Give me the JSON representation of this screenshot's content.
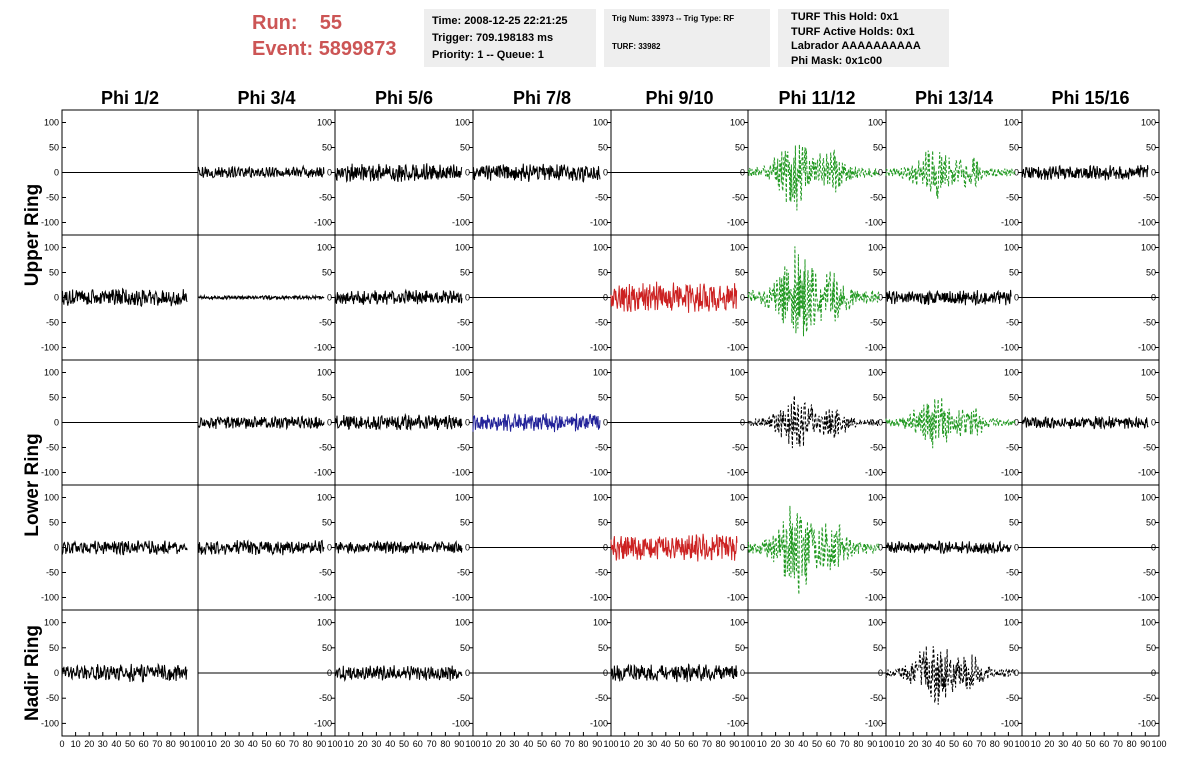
{
  "run_label": "Run:",
  "run_value": "55",
  "event_label": "Event:",
  "event_value": "5899873",
  "time_box": {
    "lines": [
      "Time: 2008-12-25 22:21:25",
      "Trigger: 709.198183 ms",
      "Priority: 1 -- Queue: 1"
    ]
  },
  "trig_box": {
    "line1": "Trig Num: 33973 -- Trig Type: RF",
    "line2": "TURF: 33982"
  },
  "turf_box": {
    "lines": [
      "TURF This Hold: 0x1",
      "TURF Active Holds: 0x1",
      "Labrador AAAAAAAAAA",
      "Phi Mask: 0x1c00"
    ]
  },
  "columns": [
    "Phi 1/2",
    "Phi 3/4",
    "Phi 5/6",
    "Phi 7/8",
    "Phi 9/10",
    "Phi 11/12",
    "Phi 13/14",
    "Phi 15/16"
  ],
  "ring_labels": [
    {
      "text": "Upper Ring",
      "rows": [
        0,
        1
      ]
    },
    {
      "text": "Lower Ring",
      "rows": [
        2,
        3
      ]
    },
    {
      "text": "Nadir Ring",
      "rows": [
        4
      ]
    }
  ],
  "colors": {
    "black": "#000000",
    "red": "#cc2222",
    "blue": "#222299",
    "green": "#229922",
    "info_text": "#cc5555",
    "info_bg": "#eeeeee"
  },
  "chart_data": {
    "type": "line",
    "description_layout": "grid of waveform panels, 5 rows x 8 columns",
    "x": {
      "min": 0,
      "max": 100,
      "ticks": [
        0,
        10,
        20,
        30,
        40,
        50,
        60,
        70,
        80,
        90,
        100
      ]
    },
    "y": {
      "min": -125,
      "max": 125,
      "ticks": [
        -100,
        -50,
        0,
        50,
        100
      ]
    },
    "panels": [
      [
        {
          "amp": 0,
          "color": "black",
          "style": "solid"
        },
        {
          "amp": 10,
          "color": "black",
          "style": "solid"
        },
        {
          "amp": 15,
          "color": "black",
          "style": "solid"
        },
        {
          "amp": 15,
          "color": "black",
          "style": "solid"
        },
        {
          "amp": 0,
          "color": "black",
          "style": "solid"
        },
        {
          "amp": 35,
          "color": "green",
          "style": "dashed",
          "burst": true
        },
        {
          "amp": 25,
          "color": "green",
          "style": "dashed",
          "burst": true
        },
        {
          "amp": 12,
          "color": "black",
          "style": "solid"
        }
      ],
      [
        {
          "amp": 14,
          "color": "black",
          "style": "solid"
        },
        {
          "amp": 3,
          "color": "black",
          "style": "solid"
        },
        {
          "amp": 12,
          "color": "black",
          "style": "solid"
        },
        {
          "amp": 0,
          "color": "black",
          "style": "solid"
        },
        {
          "amp": 25,
          "color": "red",
          "style": "solid"
        },
        {
          "amp": 45,
          "color": "green",
          "style": "dashed",
          "burst": true
        },
        {
          "amp": 12,
          "color": "black",
          "style": "solid"
        },
        {
          "amp": 0,
          "color": "black",
          "style": "solid"
        }
      ],
      [
        {
          "amp": 0,
          "color": "black",
          "style": "solid"
        },
        {
          "amp": 10,
          "color": "black",
          "style": "solid"
        },
        {
          "amp": 12,
          "color": "black",
          "style": "solid"
        },
        {
          "amp": 15,
          "color": "blue",
          "style": "solid"
        },
        {
          "amp": 0,
          "color": "black",
          "style": "solid"
        },
        {
          "amp": 25,
          "color": "black",
          "style": "dashed",
          "burst": true
        },
        {
          "amp": 25,
          "color": "green",
          "style": "dashed",
          "burst": true
        },
        {
          "amp": 10,
          "color": "black",
          "style": "solid"
        }
      ],
      [
        {
          "amp": 12,
          "color": "black",
          "style": "solid"
        },
        {
          "amp": 12,
          "color": "black",
          "style": "solid"
        },
        {
          "amp": 10,
          "color": "black",
          "style": "solid"
        },
        {
          "amp": 0,
          "color": "black",
          "style": "solid"
        },
        {
          "amp": 22,
          "color": "red",
          "style": "solid"
        },
        {
          "amp": 40,
          "color": "green",
          "style": "dashed",
          "burst": true
        },
        {
          "amp": 10,
          "color": "black",
          "style": "solid"
        },
        {
          "amp": 0,
          "color": "black",
          "style": "solid"
        }
      ],
      [
        {
          "amp": 14,
          "color": "black",
          "style": "solid"
        },
        {
          "amp": 0,
          "color": "black",
          "style": "solid"
        },
        {
          "amp": 12,
          "color": "black",
          "style": "solid"
        },
        {
          "amp": 0,
          "color": "black",
          "style": "solid"
        },
        {
          "amp": 14,
          "color": "black",
          "style": "solid"
        },
        {
          "amp": 0,
          "color": "black",
          "style": "solid"
        },
        {
          "amp": 30,
          "color": "black",
          "style": "dashed",
          "burst": true
        },
        {
          "amp": 0,
          "color": "black",
          "style": "solid"
        }
      ]
    ]
  }
}
